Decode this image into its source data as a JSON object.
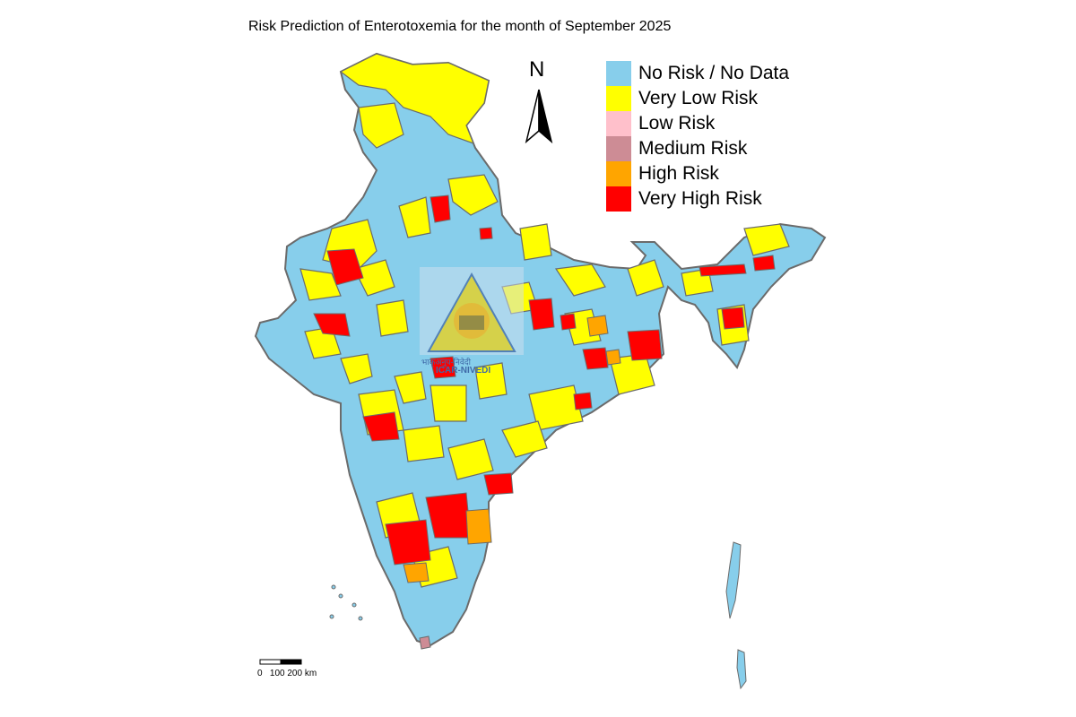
{
  "title": "Risk Prediction of Enterotoxemia for the month of September 2025",
  "legend": [
    {
      "label": "No Risk / No Data",
      "color": "#87ceeb"
    },
    {
      "label": "Very Low Risk",
      "color": "#ffff00"
    },
    {
      "label": "Low Risk",
      "color": "#ffc0cb"
    },
    {
      "label": "Medium Risk",
      "color": "#cd8c95"
    },
    {
      "label": "High Risk",
      "color": "#ffa500"
    },
    {
      "label": "Very High Risk",
      "color": "#ff0000"
    }
  ],
  "north_arrow": "N",
  "scale": {
    "labels": "0   100 200 km"
  },
  "watermark": {
    "line1": "भाकृअनुप-निवेदी",
    "line2": "ICAR-NIVEDI"
  },
  "colors": {
    "boundary": "#6b6b6b",
    "background": "#ffffff"
  }
}
